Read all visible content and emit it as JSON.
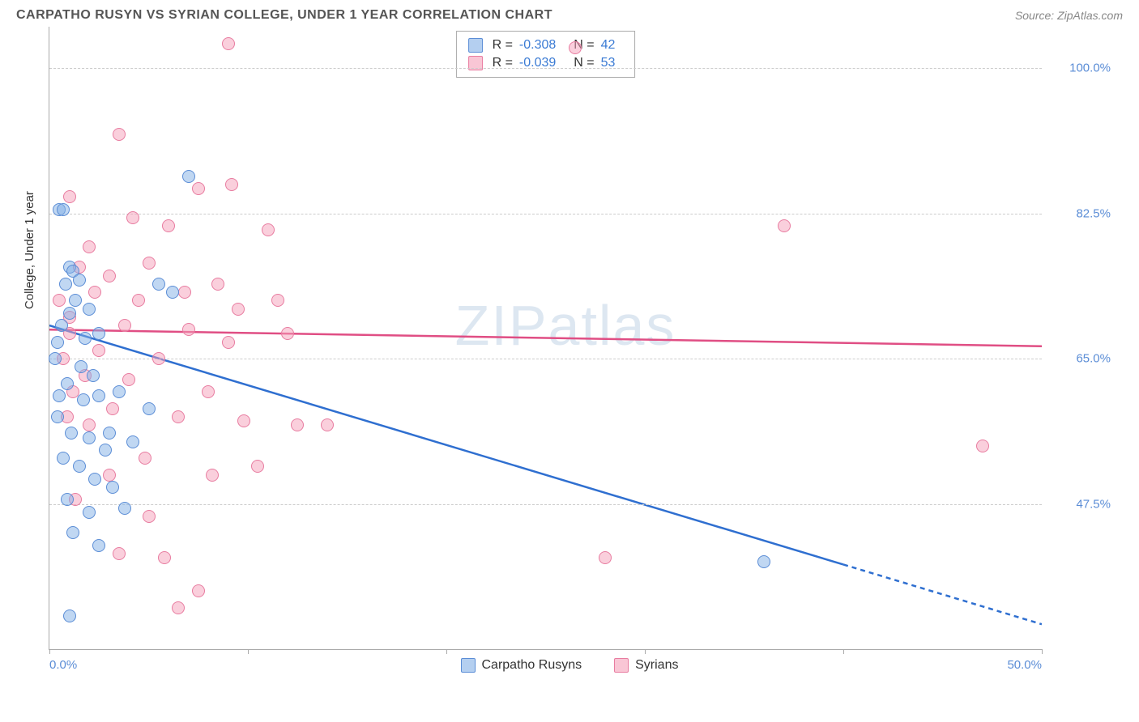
{
  "title": "CARPATHO RUSYN VS SYRIAN COLLEGE, UNDER 1 YEAR CORRELATION CHART",
  "source_prefix": "Source: ",
  "source_name": "ZipAtlas.com",
  "ylabel": "College, Under 1 year",
  "watermark_part1": "ZIP",
  "watermark_part2": "atlas",
  "chart": {
    "type": "scatter",
    "xlim": [
      0,
      50
    ],
    "ylim": [
      30,
      105
    ],
    "y_ticks": [
      47.5,
      65.0,
      82.5,
      100.0
    ],
    "y_tick_labels": [
      "47.5%",
      "65.0%",
      "82.5%",
      "100.0%"
    ],
    "x_ticks": [
      0,
      10,
      20,
      30,
      40,
      50
    ],
    "x_tick_labels_shown": {
      "0": "0.0%",
      "50": "50.0%"
    },
    "background_color": "#ffffff",
    "grid_color": "#cccccc",
    "axis_color": "#aaaaaa",
    "marker_radius": 8,
    "marker_opacity": 0.5,
    "tick_label_color": "#5b8dd6",
    "tick_label_fontsize": 15
  },
  "series": {
    "blue": {
      "name": "Carpatho Rusyns",
      "color_fill": "#82afe6",
      "color_stroke": "#5b8dd6",
      "R": "-0.308",
      "N": "42",
      "trend": {
        "y_intercept_at_x0": 69,
        "y_at_x50": 33,
        "solid_until_x": 40,
        "color": "#2f6fd0",
        "width": 2.5
      },
      "points": [
        [
          0.5,
          83
        ],
        [
          0.7,
          83
        ],
        [
          1.0,
          76
        ],
        [
          1.2,
          75.5
        ],
        [
          0.8,
          74
        ],
        [
          1.5,
          74.5
        ],
        [
          1.3,
          72
        ],
        [
          1.0,
          70.5
        ],
        [
          0.6,
          69
        ],
        [
          0.4,
          67
        ],
        [
          1.8,
          67.5
        ],
        [
          0.3,
          65
        ],
        [
          1.6,
          64
        ],
        [
          2.2,
          63
        ],
        [
          0.9,
          62
        ],
        [
          0.5,
          60.5
        ],
        [
          1.7,
          60
        ],
        [
          2.5,
          60.5
        ],
        [
          3.5,
          61
        ],
        [
          5.0,
          59
        ],
        [
          0.4,
          58
        ],
        [
          1.1,
          56
        ],
        [
          2.0,
          55.5
        ],
        [
          3.0,
          56
        ],
        [
          4.2,
          55
        ],
        [
          2.8,
          54
        ],
        [
          0.7,
          53
        ],
        [
          1.5,
          52
        ],
        [
          2.3,
          50.5
        ],
        [
          3.2,
          49.5
        ],
        [
          0.9,
          48
        ],
        [
          2.0,
          46.5
        ],
        [
          3.8,
          47
        ],
        [
          1.2,
          44
        ],
        [
          2.5,
          42.5
        ],
        [
          5.5,
          74
        ],
        [
          6.2,
          73
        ],
        [
          7.0,
          87
        ],
        [
          1.0,
          34
        ],
        [
          36.0,
          40.5
        ],
        [
          2.0,
          71
        ],
        [
          2.5,
          68
        ]
      ]
    },
    "pink": {
      "name": "Syrians",
      "color_fill": "#f5a0b9",
      "color_stroke": "#e87ca0",
      "R": "-0.039",
      "N": "53",
      "trend": {
        "y_intercept_at_x0": 68.5,
        "y_at_x50": 66.5,
        "solid_until_x": 50,
        "color": "#e04e84",
        "width": 2.5
      },
      "points": [
        [
          9.0,
          103
        ],
        [
          26.5,
          102.5
        ],
        [
          3.5,
          92
        ],
        [
          7.5,
          85.5
        ],
        [
          9.2,
          86
        ],
        [
          1.0,
          84.5
        ],
        [
          4.2,
          82
        ],
        [
          6.0,
          81
        ],
        [
          11.0,
          80.5
        ],
        [
          2.0,
          78.5
        ],
        [
          1.5,
          76
        ],
        [
          3.0,
          75
        ],
        [
          5.0,
          76.5
        ],
        [
          8.5,
          74
        ],
        [
          2.3,
          73
        ],
        [
          4.5,
          72
        ],
        [
          6.8,
          73
        ],
        [
          9.5,
          71
        ],
        [
          11.5,
          72
        ],
        [
          1.0,
          70
        ],
        [
          3.8,
          69
        ],
        [
          7.0,
          68.5
        ],
        [
          9.0,
          67
        ],
        [
          12.0,
          68
        ],
        [
          2.5,
          66
        ],
        [
          5.5,
          65
        ],
        [
          1.8,
          63
        ],
        [
          4.0,
          62.5
        ],
        [
          8.0,
          61
        ],
        [
          3.2,
          59
        ],
        [
          6.5,
          58
        ],
        [
          9.8,
          57.5
        ],
        [
          12.5,
          57
        ],
        [
          14.0,
          57
        ],
        [
          2.0,
          57
        ],
        [
          4.8,
          53
        ],
        [
          10.5,
          52
        ],
        [
          3.0,
          51
        ],
        [
          8.2,
          51
        ],
        [
          1.3,
          48
        ],
        [
          5.0,
          46
        ],
        [
          3.5,
          41.5
        ],
        [
          5.8,
          41
        ],
        [
          7.5,
          37
        ],
        [
          6.5,
          35
        ],
        [
          28.0,
          41
        ],
        [
          37.0,
          81
        ],
        [
          47.0,
          54.5
        ],
        [
          0.5,
          72
        ],
        [
          1.0,
          68
        ],
        [
          0.7,
          65
        ],
        [
          1.2,
          61
        ],
        [
          0.9,
          58
        ]
      ]
    }
  },
  "legend_stats": {
    "r_label": "R =",
    "n_label": "N ="
  }
}
